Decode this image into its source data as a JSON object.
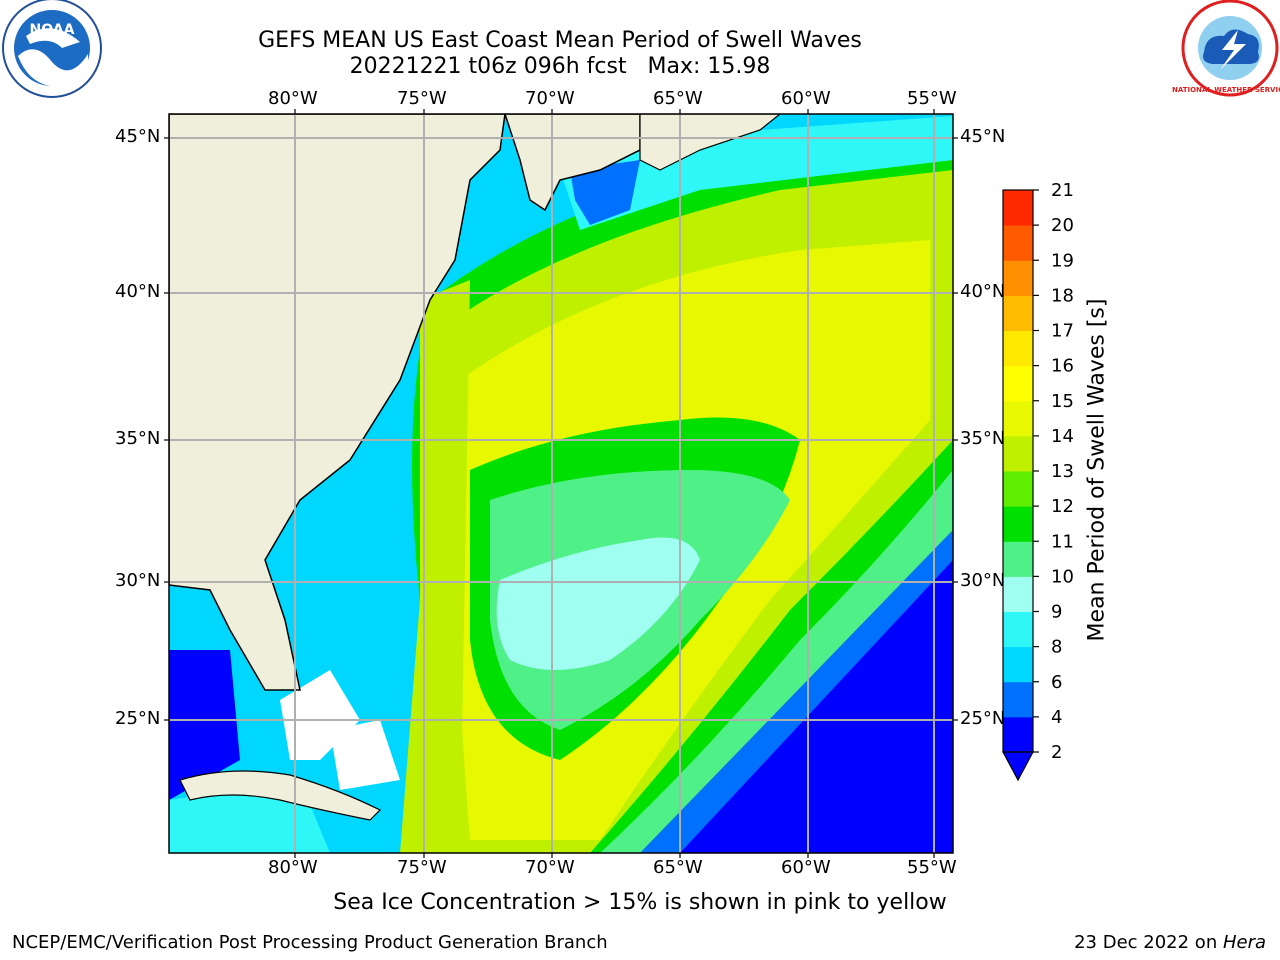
{
  "title": {
    "line1": "GEFS MEAN US East Coast Mean Period of Swell Waves",
    "line2": "20221221 t06z 096h fcst   Max: 15.98"
  },
  "logos": {
    "noaa_text": "NOAA",
    "nws_text": "NATIONAL WEATHER SERVICE"
  },
  "map": {
    "lon_ticks": [
      "80°W",
      "75°W",
      "70°W",
      "65°W",
      "60°W",
      "55°W"
    ],
    "lat_ticks": [
      "45°N",
      "40°N",
      "35°N",
      "30°N",
      "25°N"
    ],
    "colors": {
      "land": "#efefdc",
      "grid": "#b0b0b0",
      "coast": "#000000"
    }
  },
  "colorbar": {
    "label": "Mean Period of Swell Waves [s]",
    "levels": [
      "2",
      "4",
      "6",
      "8",
      "9",
      "10",
      "11",
      "12",
      "13",
      "14",
      "15",
      "16",
      "17",
      "18",
      "19",
      "20",
      "21"
    ],
    "colors": [
      "#0000ff",
      "#0070ff",
      "#00d7ff",
      "#30f7f7",
      "#9ffff0",
      "#50f088",
      "#00e000",
      "#60ee00",
      "#bff000",
      "#e8f800",
      "#ffff00",
      "#ffe800",
      "#ffbb00",
      "#ff8f00",
      "#ff5a00",
      "#ff2a00"
    ]
  },
  "caption": "Sea Ice Concentration > 15% is shown in pink to yellow",
  "footer": {
    "left": "NCEP/EMC/Verification Post Processing Product Generation Branch",
    "right_date": "23 Dec 2022 on ",
    "right_machine": "Hera"
  }
}
